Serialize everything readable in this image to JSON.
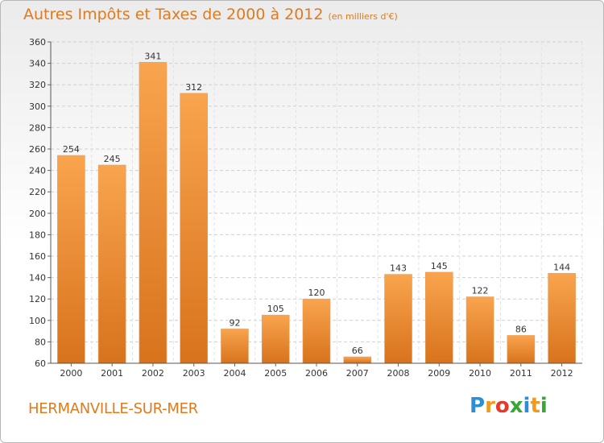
{
  "header": {
    "title": "Autres Impôts et Taxes de 2000 à 2012",
    "subtitle": "(en milliers d'€)"
  },
  "footer": {
    "place": "HERMANVILLE-SUR-MER",
    "logo_letters": [
      "P",
      "r",
      "o",
      "x",
      "i",
      "t",
      "i"
    ],
    "logo_colors": [
      "#2a8fd6",
      "#f29a1c",
      "#e53a2a",
      "#3aa635",
      "#2a8fd6",
      "#f29a1c",
      "#3aa635"
    ]
  },
  "colors": {
    "accent": "#e07a1e",
    "bar_light": "#f9a44e",
    "bar_dark": "#d8731c"
  },
  "chart_data": {
    "type": "bar",
    "title": "Autres Impôts et Taxes de 2000 à 2012",
    "subtitle": "(en milliers d'€)",
    "categories": [
      "2000",
      "2001",
      "2002",
      "2003",
      "2004",
      "2005",
      "2006",
      "2007",
      "2008",
      "2009",
      "2010",
      "2011",
      "2012"
    ],
    "values": [
      254,
      245,
      341,
      312,
      92,
      105,
      120,
      66,
      143,
      145,
      122,
      86,
      144
    ],
    "ylim": [
      60,
      360
    ],
    "yticks": [
      60,
      80,
      100,
      120,
      140,
      160,
      180,
      200,
      220,
      240,
      260,
      280,
      300,
      320,
      340,
      360
    ],
    "grid": true,
    "xlabel": "",
    "ylabel": ""
  }
}
